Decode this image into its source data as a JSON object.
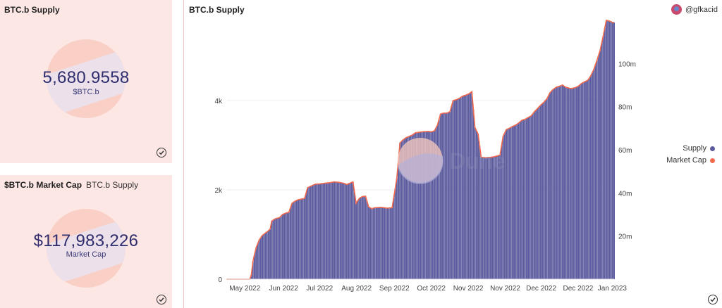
{
  "supply_panel": {
    "title": "BTC.b Supply",
    "value": "5,680.9558",
    "label": "$BTC.b"
  },
  "mcap_panel": {
    "title": "$BTC.b Market Cap",
    "subtitle": "BTC.b Supply",
    "value": "$117,983,226",
    "label": "Market Cap"
  },
  "chart_panel": {
    "title": "BTC.b Supply",
    "author": "@gfkacid",
    "watermark": "Dune"
  },
  "colors": {
    "supply": "#5c5b9e",
    "market_cap": "#f26b4f",
    "panel_bg": "#fde7e4"
  },
  "chart_data": {
    "type": "bar",
    "title": "BTC.b Supply",
    "x_tick_labels": [
      "May 2022",
      "Jun 2022",
      "Jul 2022",
      "Aug 2022",
      "Sep 2022",
      "Oct 2022",
      "Nov 2022",
      "Nov 2022",
      "Dec 2022",
      "Dec 2022",
      "Jan 2023"
    ],
    "y_left_ticks": [
      "0",
      "2k",
      "4k"
    ],
    "y_left_values": [
      0,
      2000,
      4000
    ],
    "y_right_ticks": [
      "20m",
      "40m",
      "60m",
      "80m",
      "100m"
    ],
    "y_right_values": [
      20000000,
      40000000,
      60000000,
      80000000,
      100000000
    ],
    "ylim_left": [
      0,
      5780
    ],
    "ylim_right": [
      0,
      119700000
    ],
    "x_range_days": [
      0,
      248
    ],
    "series": [
      {
        "name": "Supply",
        "axis": "left",
        "points": [
          [
            0,
            0
          ],
          [
            15,
            0
          ],
          [
            16,
            100
          ],
          [
            17,
            400
          ],
          [
            19,
            700
          ],
          [
            21,
            880
          ],
          [
            23,
            980
          ],
          [
            26,
            1060
          ],
          [
            28,
            1120
          ],
          [
            29,
            1300
          ],
          [
            31,
            1350
          ],
          [
            34,
            1380
          ],
          [
            36,
            1450
          ],
          [
            38,
            1480
          ],
          [
            40,
            1500
          ],
          [
            42,
            1700
          ],
          [
            44,
            1750
          ],
          [
            46,
            1780
          ],
          [
            50,
            1810
          ],
          [
            52,
            2050
          ],
          [
            55,
            2100
          ],
          [
            57,
            2130
          ],
          [
            60,
            2135
          ],
          [
            63,
            2150
          ],
          [
            66,
            2160
          ],
          [
            69,
            2180
          ],
          [
            72,
            2170
          ],
          [
            75,
            2150
          ],
          [
            77,
            2120
          ],
          [
            79,
            2150
          ],
          [
            81,
            2180
          ],
          [
            83,
            1700
          ],
          [
            85,
            1810
          ],
          [
            87,
            1850
          ],
          [
            89,
            1860
          ],
          [
            91,
            1620
          ],
          [
            93,
            1580
          ],
          [
            95,
            1600
          ],
          [
            99,
            1610
          ],
          [
            103,
            1590
          ],
          [
            106,
            1600
          ],
          [
            109,
            2250
          ],
          [
            111,
            3050
          ],
          [
            113,
            3120
          ],
          [
            115,
            3170
          ],
          [
            117,
            3200
          ],
          [
            119,
            3230
          ],
          [
            121,
            3280
          ],
          [
            123,
            3290
          ],
          [
            125,
            3300
          ],
          [
            127,
            3305
          ],
          [
            129,
            3310
          ],
          [
            131,
            3300
          ],
          [
            133,
            3320
          ],
          [
            135,
            3450
          ],
          [
            137,
            3700
          ],
          [
            139,
            3720
          ],
          [
            141,
            3720
          ],
          [
            143,
            3750
          ],
          [
            145,
            4000
          ],
          [
            147,
            4020
          ],
          [
            149,
            4050
          ],
          [
            151,
            4100
          ],
          [
            153,
            4120
          ],
          [
            155,
            4150
          ],
          [
            157,
            4200
          ],
          [
            159,
            3400
          ],
          [
            161,
            3250
          ],
          [
            163,
            2730
          ],
          [
            166,
            2720
          ],
          [
            169,
            2730
          ],
          [
            171,
            2740
          ],
          [
            173,
            2760
          ],
          [
            175,
            2780
          ],
          [
            177,
            3200
          ],
          [
            179,
            3350
          ],
          [
            181,
            3380
          ],
          [
            183,
            3420
          ],
          [
            185,
            3450
          ],
          [
            187,
            3500
          ],
          [
            189,
            3560
          ],
          [
            191,
            3580
          ],
          [
            193,
            3620
          ],
          [
            195,
            3660
          ],
          [
            197,
            3750
          ],
          [
            199,
            3820
          ],
          [
            201,
            3900
          ],
          [
            203,
            3960
          ],
          [
            205,
            4040
          ],
          [
            207,
            4180
          ],
          [
            209,
            4250
          ],
          [
            211,
            4300
          ],
          [
            213,
            4320
          ],
          [
            215,
            4350
          ],
          [
            217,
            4300
          ],
          [
            219,
            4280
          ],
          [
            221,
            4270
          ],
          [
            223,
            4290
          ],
          [
            225,
            4320
          ],
          [
            227,
            4380
          ],
          [
            229,
            4420
          ],
          [
            231,
            4450
          ],
          [
            233,
            4550
          ],
          [
            235,
            4700
          ],
          [
            237,
            4900
          ],
          [
            239,
            5120
          ],
          [
            241,
            5450
          ],
          [
            243,
            5800
          ],
          [
            245,
            5781
          ],
          [
            247,
            5750
          ]
        ]
      },
      {
        "name": "Market Cap",
        "axis": "right",
        "points": "same-shape-as-supply"
      }
    ],
    "legend": {
      "placement": "right",
      "entries": [
        "Supply",
        "Market Cap"
      ]
    },
    "grid": true
  }
}
